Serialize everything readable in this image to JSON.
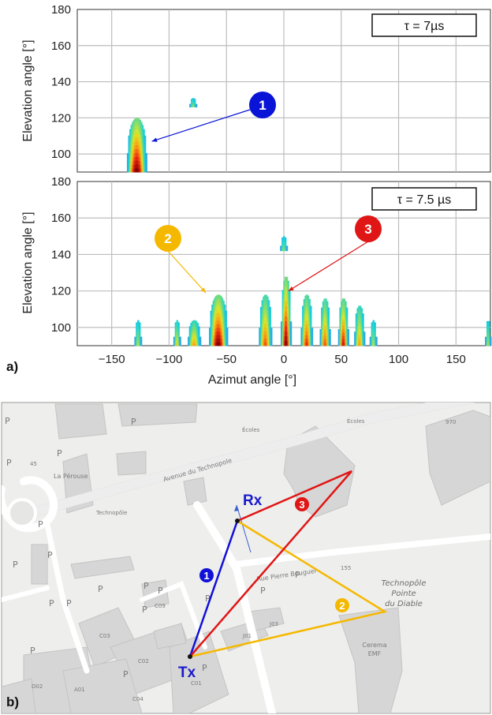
{
  "chart_data": [
    {
      "type": "heatmap",
      "tau_label": "τ = 7µs",
      "ylabel": "Elevation angle [°]",
      "yticks": [
        "100",
        "120",
        "140",
        "160",
        "180"
      ],
      "ylim": [
        90,
        180
      ],
      "xlim": [
        -180,
        180
      ],
      "grid": true,
      "blobs": [
        {
          "az": -128,
          "el_top": 120,
          "width": 16,
          "peak": 1.0
        },
        {
          "az": -79,
          "el_top": 131,
          "el_bottom": 126,
          "width": 5,
          "peak": 0.45
        }
      ],
      "markers": [
        {
          "label": "1",
          "color": "#0a14d6",
          "arrow_to_az": -115,
          "arrow_to_el": 107
        }
      ]
    },
    {
      "type": "heatmap",
      "tau_label": "τ = 7.5 µs",
      "ylabel": "Elevation angle [°]",
      "xlabel": "Azimut  angle [°]",
      "xticks": [
        "−150",
        "−100",
        "−50",
        "0",
        "50",
        "100",
        "150"
      ],
      "yticks": [
        "100",
        "120",
        "140",
        "160",
        "180"
      ],
      "ylim": [
        90,
        180
      ],
      "xlim": [
        -180,
        180
      ],
      "grid": true,
      "blobs": [
        {
          "az": -57,
          "el_top": 118,
          "width": 15,
          "peak": 1.0
        },
        {
          "az": 2,
          "el_top": 128,
          "width": 8,
          "peak": 1.0
        },
        {
          "az": 0,
          "el_top": 150,
          "el_bottom": 142,
          "width": 5,
          "peak": 0.45
        },
        {
          "az": -93,
          "el_top": 104,
          "width": 5,
          "peak": 0.6
        },
        {
          "az": -78,
          "el_top": 104,
          "width": 10,
          "peak": 0.7
        },
        {
          "az": -127,
          "el_top": 104,
          "width": 5,
          "peak": 0.5
        },
        {
          "az": -16,
          "el_top": 118,
          "width": 10,
          "peak": 0.8
        },
        {
          "az": 20,
          "el_top": 118,
          "width": 9,
          "peak": 0.85
        },
        {
          "az": 36,
          "el_top": 116,
          "width": 8,
          "peak": 0.8
        },
        {
          "az": 52,
          "el_top": 116,
          "width": 8,
          "peak": 0.9
        },
        {
          "az": 66,
          "el_top": 112,
          "width": 8,
          "peak": 0.7
        },
        {
          "az": 78,
          "el_top": 104,
          "width": 5,
          "peak": 0.5
        },
        {
          "az": 178,
          "el_top": 104,
          "width": 4,
          "peak": 0.5
        }
      ],
      "markers": [
        {
          "label": "2",
          "color": "#f5b800",
          "arrow_to_az": -68,
          "arrow_to_el": 119
        },
        {
          "label": "3",
          "color": "#e01515",
          "arrow_to_az": 4,
          "arrow_to_el": 120
        }
      ]
    }
  ],
  "panel_a_label": "a)",
  "panel_b_label": "b)",
  "map": {
    "street_labels": [
      "Avenue du Technopole",
      "Rue Pierre Bouguer"
    ],
    "poi_labels": [
      "La Pérouse",
      "Technopôle",
      "Écoles",
      "Écoles",
      "155",
      "970",
      "45"
    ],
    "area_label_lines": [
      "Technopôle",
      "Pointe",
      "du Diable"
    ],
    "building_labels": [
      "Cerema",
      "EMF",
      "J01",
      "J03",
      "C03",
      "C09",
      "C02",
      "C01",
      "C04",
      "D02",
      "A01"
    ],
    "parking_label": "P",
    "rx_label": "Rx",
    "tx_label": "Tx",
    "paths": [
      {
        "label": "1",
        "color": "#1010d8"
      },
      {
        "label": "2",
        "color": "#f5b800"
      },
      {
        "label": "3",
        "color": "#e01515"
      }
    ]
  }
}
